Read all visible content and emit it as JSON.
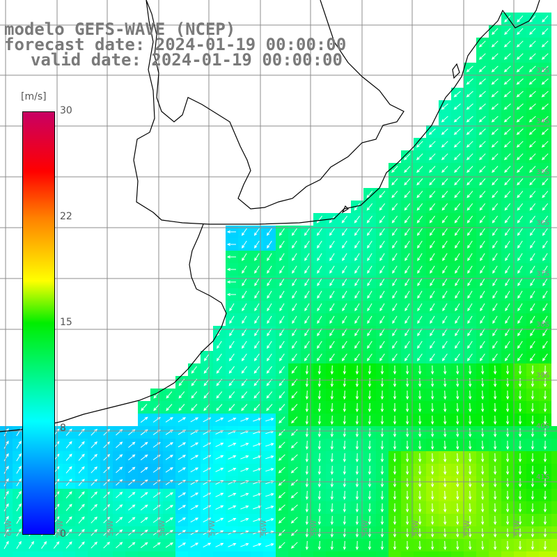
{
  "header": {
    "line1": "modelo GEFS-WAVE (NCEP)",
    "line2": "forecast date: 2024-01-19 00:00:00",
    "line3": "valid date: 2024-01-19 00:00:00"
  },
  "colorbar": {
    "unit": "[m/s]",
    "ticks": [
      "30",
      "22",
      "15",
      "8",
      "0"
    ],
    "colors": [
      "#0000ff",
      "#00ffff",
      "#00ee00",
      "#ffff00",
      "#ff8000",
      "#ff0000",
      "#c80064"
    ]
  },
  "graticule": {
    "lat_labels": [
      "33S",
      "34S",
      "35S",
      "36S",
      "37S",
      "38S",
      "39S",
      "40S",
      "41S"
    ],
    "lon_labels": [
      "61W",
      "60W",
      "59W",
      "58W",
      "57W",
      "56W",
      "55W",
      "54W",
      "53W",
      "52W",
      "51W"
    ]
  },
  "colors": {
    "land": "#ffffff",
    "coast": "#000000",
    "grid": "#8c8c8c",
    "arrow": "#ffffff"
  }
}
